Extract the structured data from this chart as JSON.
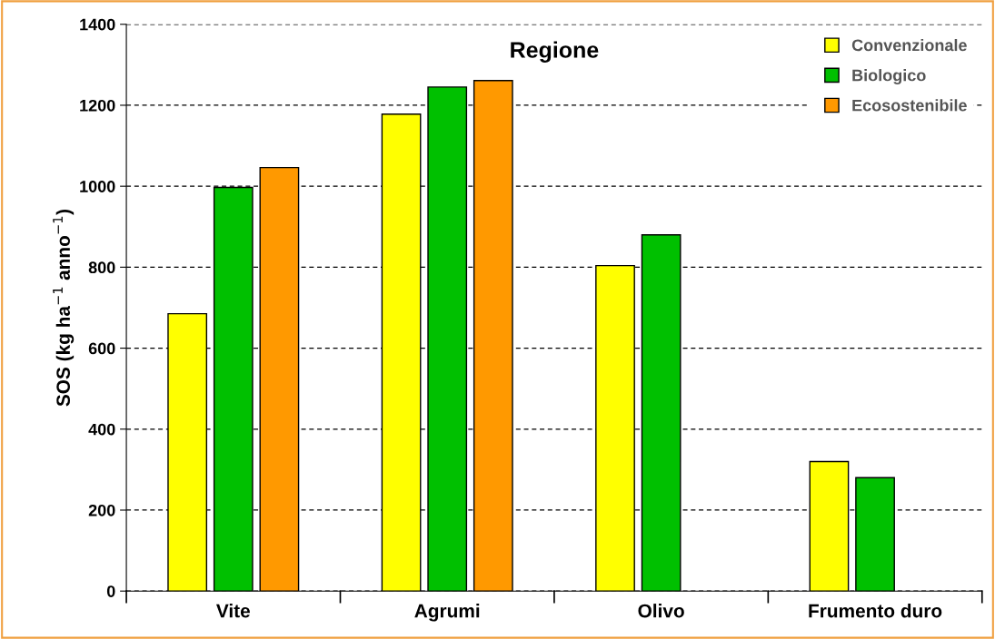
{
  "chart_data": {
    "type": "bar",
    "title": "Regione",
    "ylabel": "SOS (kg ha$^{−1}$ anno$^{−1}$)",
    "categories": [
      "Vite",
      "Agrumi",
      "Olivo",
      "Frumento duro"
    ],
    "series": [
      {
        "name": "Convenzionale",
        "color": "#ffff00",
        "values": [
          685,
          1178,
          804,
          320
        ]
      },
      {
        "name": "Biologico",
        "color": "#00c000",
        "values": [
          997,
          1245,
          880,
          280
        ]
      },
      {
        "name": "Ecosostenibile",
        "color": "#ff9900",
        "values": [
          1046,
          1261,
          null,
          null
        ]
      }
    ],
    "ylim": [
      0,
      1400
    ],
    "yticks": [
      0,
      200,
      400,
      600,
      800,
      1000,
      1200,
      1400
    ],
    "grid": "y",
    "legend": "top right"
  }
}
